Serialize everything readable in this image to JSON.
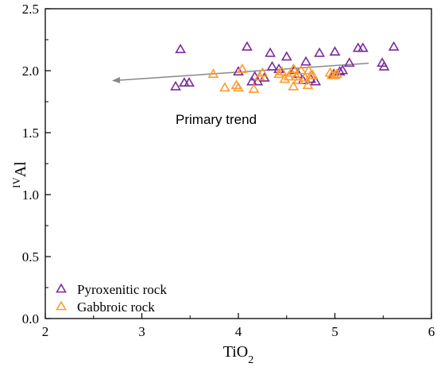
{
  "chart_data": {
    "type": "scatter",
    "xlabel": {
      "base": "TiO",
      "sub": "2"
    },
    "ylabel": {
      "sup": "IV",
      "base": "Al"
    },
    "xlim": [
      2,
      6
    ],
    "ylim": [
      0,
      2.5
    ],
    "xticks": [
      "2",
      "3",
      "4",
      "5",
      "6"
    ],
    "yticks": [
      "0.0",
      "0.5",
      "1.0",
      "1.5",
      "2.0",
      "2.5"
    ],
    "legend_position": "bottom-left",
    "annotation": "Primary trend",
    "trend_arrow": {
      "from": [
        5.35,
        2.06
      ],
      "to": [
        2.7,
        1.92
      ],
      "color": "#888888"
    },
    "series": [
      {
        "name": "Pyroxenitic rock",
        "color": "#7b2a9c",
        "marker": "open-triangle",
        "points": [
          [
            3.35,
            1.87
          ],
          [
            3.4,
            2.17
          ],
          [
            3.44,
            1.9
          ],
          [
            3.49,
            1.9
          ],
          [
            4.0,
            1.99
          ],
          [
            4.09,
            2.19
          ],
          [
            4.14,
            1.91
          ],
          [
            4.17,
            1.95
          ],
          [
            4.2,
            1.91
          ],
          [
            4.27,
            1.94
          ],
          [
            4.33,
            2.14
          ],
          [
            4.35,
            2.03
          ],
          [
            4.42,
            2.01
          ],
          [
            4.5,
            2.11
          ],
          [
            4.58,
            2.0
          ],
          [
            4.62,
            1.97
          ],
          [
            4.67,
            1.92
          ],
          [
            4.7,
            2.07
          ],
          [
            4.75,
            1.93
          ],
          [
            4.8,
            1.91
          ],
          [
            4.84,
            2.14
          ],
          [
            4.99,
            1.97
          ],
          [
            5.0,
            2.15
          ],
          [
            5.05,
            1.99
          ],
          [
            5.08,
            2.0
          ],
          [
            5.15,
            2.06
          ],
          [
            5.24,
            2.18
          ],
          [
            5.29,
            2.18
          ],
          [
            5.49,
            2.06
          ],
          [
            5.51,
            2.03
          ],
          [
            5.61,
            2.19
          ]
        ]
      },
      {
        "name": "Gabbroic rock",
        "color": "#ff9a2e",
        "marker": "open-triangle",
        "points": [
          [
            3.74,
            1.97
          ],
          [
            3.86,
            1.86
          ],
          [
            3.98,
            1.88
          ],
          [
            4.0,
            1.86
          ],
          [
            4.04,
            2.01
          ],
          [
            4.16,
            1.85
          ],
          [
            4.22,
            1.95
          ],
          [
            4.25,
            1.98
          ],
          [
            4.42,
            1.97
          ],
          [
            4.45,
            1.99
          ],
          [
            4.48,
            1.93
          ],
          [
            4.52,
            1.95
          ],
          [
            4.55,
            1.98
          ],
          [
            4.57,
            2.01
          ],
          [
            4.57,
            1.87
          ],
          [
            4.6,
            1.95
          ],
          [
            4.62,
            1.92
          ],
          [
            4.65,
            2.0
          ],
          [
            4.69,
            1.94
          ],
          [
            4.72,
            1.88
          ],
          [
            4.73,
            2.0
          ],
          [
            4.75,
            1.96
          ],
          [
            4.77,
            1.96
          ],
          [
            4.95,
            1.98
          ],
          [
            4.97,
            1.96
          ],
          [
            5.0,
            1.96
          ],
          [
            5.02,
            1.97
          ]
        ]
      }
    ]
  }
}
